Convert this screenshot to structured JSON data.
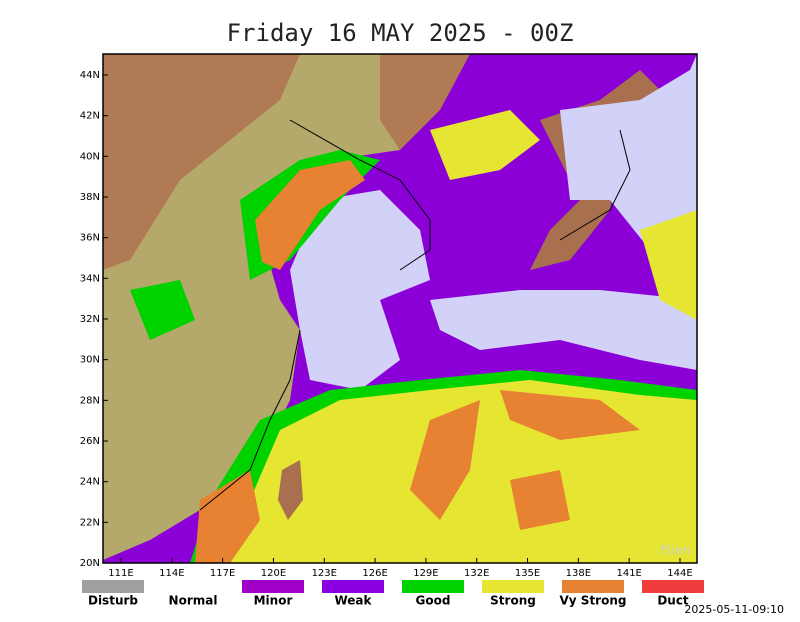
{
  "header": {
    "title": "Friday 16 MAY 2025 - 00Z"
  },
  "map": {
    "lat_labels": [
      "44N",
      "42N",
      "40N",
      "38N",
      "36N",
      "34N",
      "32N",
      "30N",
      "28N",
      "26N",
      "24N",
      "22N",
      "20N"
    ],
    "lon_labels": [
      "111E",
      "114E",
      "117E",
      "120E",
      "123E",
      "126E",
      "129E",
      "132E",
      "135E",
      "138E",
      "141E",
      "144E"
    ],
    "watermark": "f5len"
  },
  "legend": [
    {
      "label": "Disturb",
      "color": "#a0a0a0"
    },
    {
      "label": "Normal",
      "color": "#ffffff"
    },
    {
      "label": "Minor",
      "color": "#a000c8"
    },
    {
      "label": "Weak",
      "color": "#8a00e0"
    },
    {
      "label": "Good",
      "color": "#00d200"
    },
    {
      "label": "Strong",
      "color": "#e6e632"
    },
    {
      "label": "Vy Strong",
      "color": "#e68232"
    },
    {
      "label": "Duct",
      "color": "#f03c3c"
    }
  ],
  "footer": {
    "timestamp": "2025-05-11-09:10"
  }
}
